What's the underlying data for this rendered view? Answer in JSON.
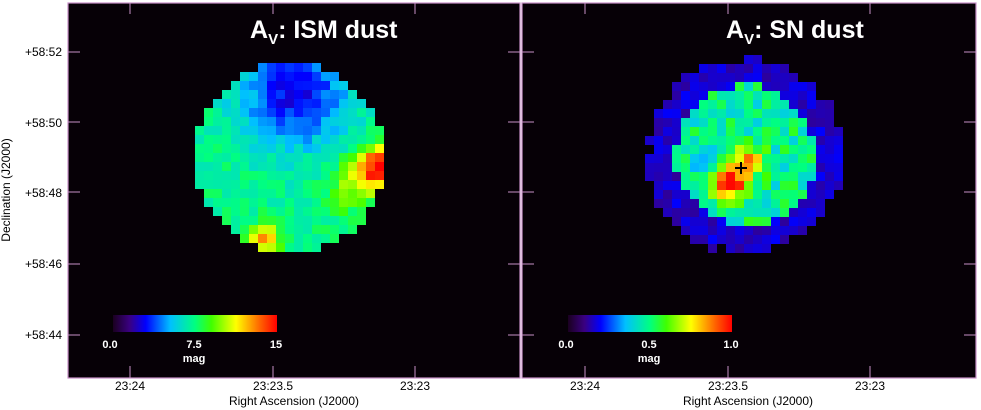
{
  "y_label": "Declination (J2000)",
  "y_ticks": [
    "+58:52",
    "+58:50",
    "+58:48",
    "+58:46",
    "+58:44"
  ],
  "panels": [
    {
      "title": {
        "main": "A",
        "sub": "V",
        "rest": ": ISM dust"
      },
      "colorbar": {
        "ticks": [
          "0.0",
          "7.5",
          "15"
        ],
        "unit": "mag"
      },
      "x_ticks": [
        "23:24",
        "23:23.5",
        "23:23"
      ],
      "x_label": "Right Ascension (J2000)"
    },
    {
      "title": {
        "main": "A",
        "sub": "V",
        "rest": ": SN dust"
      },
      "colorbar": {
        "ticks": [
          "0.0",
          "0.5",
          "1.0"
        ],
        "unit": "mag"
      },
      "x_ticks": [
        "23:24",
        "23:23.5",
        "23:23"
      ],
      "x_label": "Right Ascension (J2000)"
    }
  ]
}
